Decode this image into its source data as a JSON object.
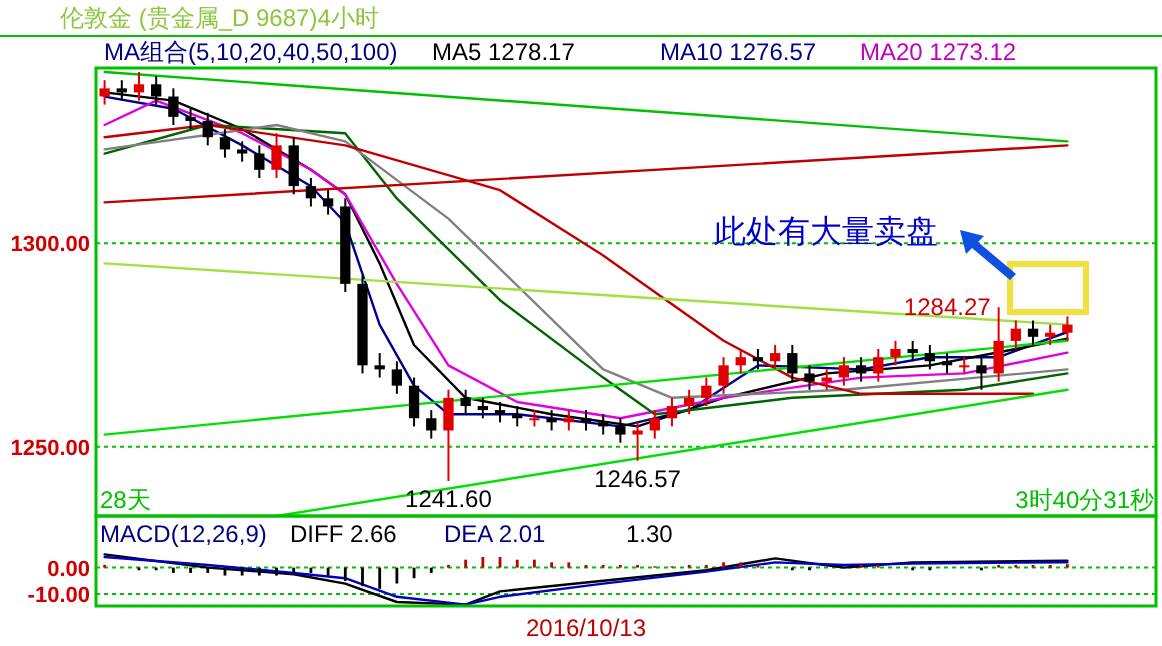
{
  "chart_data": [
    {
      "type": "candlestick",
      "title": "伦敦金 (贵金属_D 9687)4小时",
      "annotations": [
        "MA组合(5,10,20,40,50,100)",
        "MA5 1278.17",
        "MA10 1276.57",
        "MA20 1273.12",
        "28天",
        "3时40分31秒",
        "此处有大量卖盘"
      ],
      "categories": [
        null,
        null,
        null,
        null,
        null,
        null,
        null,
        null,
        null,
        null,
        null,
        null,
        null,
        null,
        null,
        null,
        null,
        null,
        null,
        null,
        null,
        null,
        null,
        null,
        null,
        null,
        null,
        null,
        null,
        null,
        null,
        null,
        null,
        null,
        null,
        null,
        null,
        null,
        null,
        null,
        null,
        null,
        null,
        null,
        null,
        null,
        null,
        null,
        null,
        null,
        null,
        null,
        null,
        null,
        null,
        null,
        null
      ],
      "ohlc": [
        [
          1336,
          1340,
          1334,
          1338
        ],
        [
          1338,
          1340,
          1335,
          1337
        ],
        [
          1337,
          1342,
          1335,
          1339
        ],
        [
          1339,
          1341,
          1334,
          1336
        ],
        [
          1336,
          1338,
          1329,
          1331
        ],
        [
          1331,
          1333,
          1328,
          1330
        ],
        [
          1330,
          1332,
          1324,
          1326
        ],
        [
          1326,
          1328,
          1321,
          1323
        ],
        [
          1323,
          1325,
          1320,
          1322
        ],
        [
          1322,
          1324,
          1316,
          1318
        ],
        [
          1318,
          1327,
          1316,
          1324
        ],
        [
          1324,
          1326,
          1312,
          1314
        ],
        [
          1314,
          1316,
          1309,
          1311
        ],
        [
          1311,
          1313,
          1307,
          1309
        ],
        [
          1309,
          1311,
          1288,
          1290
        ],
        [
          1290,
          1292,
          1268,
          1270
        ],
        [
          1270,
          1273,
          1267,
          1269
        ],
        [
          1269,
          1271,
          1263,
          1265
        ],
        [
          1265,
          1267,
          1255,
          1257
        ],
        [
          1257,
          1259,
          1252,
          1254
        ],
        [
          1254,
          1264,
          1241.6,
          1262
        ],
        [
          1262,
          1264,
          1258,
          1260
        ],
        [
          1260,
          1262,
          1257,
          1259
        ],
        [
          1259,
          1261,
          1256,
          1258
        ],
        [
          1258,
          1260,
          1255,
          1257
        ],
        [
          1257,
          1259,
          1255,
          1257
        ],
        [
          1257,
          1259,
          1254,
          1256
        ],
        [
          1256,
          1259,
          1254,
          1257
        ],
        [
          1257,
          1259,
          1254,
          1256
        ],
        [
          1256,
          1258,
          1253,
          1255
        ],
        [
          1255,
          1257,
          1251,
          1253
        ],
        [
          1253,
          1256,
          1246.57,
          1254
        ],
        [
          1254,
          1259,
          1252,
          1257
        ],
        [
          1257,
          1262,
          1255,
          1260
        ],
        [
          1260,
          1264,
          1258,
          1262
        ],
        [
          1262,
          1267,
          1260,
          1265
        ],
        [
          1265,
          1272,
          1263,
          1270
        ],
        [
          1270,
          1274,
          1268,
          1272
        ],
        [
          1272,
          1274,
          1269,
          1271
        ],
        [
          1271,
          1275,
          1269,
          1273
        ],
        [
          1273,
          1275,
          1266,
          1268
        ],
        [
          1268,
          1270,
          1264,
          1266
        ],
        [
          1266,
          1269,
          1264,
          1267
        ],
        [
          1267,
          1272,
          1265,
          1270
        ],
        [
          1270,
          1272,
          1266,
          1268
        ],
        [
          1268,
          1274,
          1266,
          1272
        ],
        [
          1272,
          1276,
          1270,
          1274
        ],
        [
          1274,
          1276,
          1271,
          1273
        ],
        [
          1273,
          1275,
          1269,
          1271
        ],
        [
          1271,
          1273,
          1268,
          1270
        ],
        [
          1270,
          1272,
          1268,
          1270
        ],
        [
          1270,
          1272,
          1264,
          1268
        ],
        [
          1268,
          1284.27,
          1266,
          1276
        ],
        [
          1276,
          1281,
          1274,
          1279
        ],
        [
          1279,
          1281,
          1275,
          1277
        ],
        [
          1277,
          1280,
          1275,
          1278
        ],
        [
          1278,
          1282,
          1276,
          1280
        ]
      ],
      "value_labels": [
        null,
        null,
        null,
        null,
        null,
        null,
        null,
        null,
        null,
        null,
        null,
        null,
        null,
        null,
        null,
        null,
        null,
        null,
        null,
        null,
        "1241.60",
        null,
        null,
        null,
        null,
        null,
        null,
        null,
        null,
        null,
        null,
        "1246.57",
        null,
        null,
        null,
        null,
        null,
        null,
        null,
        null,
        null,
        null,
        null,
        null,
        null,
        null,
        null,
        null,
        null,
        null,
        null,
        null,
        "1284.27",
        null,
        null,
        null,
        null
      ],
      "series": [
        {
          "type": "line",
          "color": "#00008b",
          "values": [
            1336,
            null,
            null,
            null,
            1333,
            null,
            null,
            null,
            1324,
            null,
            null,
            null,
            1314,
            null,
            1305,
            null,
            1280,
            null,
            1265,
            null,
            1258,
            null,
            null,
            null,
            1258,
            null,
            null,
            null,
            null,
            null,
            1255,
            null,
            null,
            null,
            1259,
            null,
            null,
            null,
            1270,
            null,
            null,
            null,
            null,
            null,
            1269,
            null,
            null,
            null,
            1272,
            null,
            null,
            null,
            1272,
            null,
            null,
            null,
            1278.17
          ]
        },
        {
          "type": "line",
          "color": "#000000",
          "values": [
            1337,
            null,
            null,
            null,
            1335,
            null,
            null,
            null,
            1328,
            null,
            null,
            null,
            1318,
            null,
            1312,
            null,
            1295,
            null,
            1275,
            null,
            null,
            1262,
            null,
            null,
            null,
            null,
            1258,
            null,
            null,
            null,
            null,
            1255,
            null,
            null,
            null,
            null,
            1262,
            null,
            null,
            null,
            null,
            null,
            1268,
            null,
            null,
            null,
            null,
            null,
            1270,
            null,
            null,
            null,
            null,
            1274,
            null,
            null,
            1276.57
          ]
        },
        {
          "type": "line",
          "color": "#e000e0",
          "values": [
            1329,
            null,
            null,
            1335,
            null,
            null,
            null,
            null,
            1327,
            null,
            null,
            null,
            1318,
            null,
            1312,
            null,
            null,
            1290,
            null,
            null,
            1270,
            null,
            null,
            null,
            1261,
            null,
            null,
            null,
            null,
            null,
            1257,
            null,
            null,
            null,
            null,
            null,
            1262,
            null,
            null,
            null,
            null,
            null,
            null,
            null,
            1267,
            null,
            null,
            null,
            null,
            null,
            1268,
            null,
            null,
            null,
            null,
            null,
            1273.12
          ]
        },
        {
          "type": "line",
          "color": "#006400",
          "values": [
            1322,
            null,
            null,
            null,
            null,
            null,
            1329,
            null,
            null,
            null,
            null,
            null,
            null,
            null,
            1327,
            null,
            null,
            1311,
            null,
            null,
            null,
            null,
            null,
            1286,
            null,
            null,
            null,
            null,
            null,
            1267,
            null,
            null,
            1258,
            null,
            null,
            null,
            null,
            null,
            null,
            null,
            1262,
            null,
            null,
            null,
            null,
            null,
            null,
            null,
            null,
            null,
            1264,
            null,
            null,
            null,
            null,
            null,
            1268
          ]
        },
        {
          "type": "line",
          "color": "#808080",
          "values": [
            1323,
            null,
            null,
            null,
            null,
            null,
            null,
            null,
            null,
            null,
            1329,
            null,
            null,
            null,
            1325,
            null,
            null,
            null,
            null,
            null,
            1306,
            null,
            null,
            null,
            null,
            null,
            null,
            null,
            null,
            1269,
            null,
            null,
            null,
            1262,
            null,
            null,
            null,
            null,
            null,
            null,
            null,
            null,
            null,
            1264,
            null,
            null,
            null,
            null,
            null,
            null,
            null,
            null,
            null,
            null,
            null,
            null,
            1269
          ]
        },
        {
          "type": "line",
          "color": "#c00000",
          "values": [
            1326,
            null,
            null,
            null,
            null,
            null,
            1329,
            null,
            null,
            null,
            null,
            null,
            null,
            null,
            1324,
            null,
            null,
            null,
            null,
            null,
            null,
            null,
            null,
            1313,
            null,
            null,
            null,
            null,
            null,
            1297,
            null,
            null,
            null,
            null,
            null,
            null,
            1276,
            null,
            null,
            null,
            1267,
            null,
            null,
            null,
            1263,
            null,
            null,
            null,
            null,
            null,
            1263,
            null,
            null,
            null,
            1263,
            null,
            null
          ]
        },
        {
          "type": "line",
          "color": "#00e000",
          "values": [
            1253,
            null,
            null,
            null,
            null,
            null,
            null,
            null,
            null,
            null,
            null,
            null,
            null,
            null,
            null,
            null,
            null,
            null,
            null,
            null,
            null,
            null,
            null,
            null,
            null,
            null,
            null,
            null,
            null,
            null,
            null,
            null,
            null,
            null,
            null,
            null,
            null,
            null,
            null,
            null,
            null,
            null,
            null,
            null,
            null,
            null,
            null,
            null,
            null,
            null,
            null,
            null,
            null,
            null,
            null,
            null,
            1276
          ]
        },
        {
          "type": "line",
          "color": "#00e000",
          "values": [
            null,
            null,
            null,
            null,
            null,
            null,
            null,
            null,
            null,
            null,
            1233,
            null,
            null,
            null,
            null,
            null,
            null,
            null,
            null,
            null,
            null,
            null,
            null,
            null,
            null,
            null,
            null,
            null,
            null,
            null,
            null,
            null,
            null,
            null,
            null,
            null,
            null,
            null,
            null,
            null,
            null,
            null,
            null,
            null,
            null,
            null,
            null,
            null,
            null,
            null,
            null,
            null,
            null,
            null,
            null,
            null,
            1264
          ]
        },
        {
          "type": "line",
          "color": "#00c000",
          "values": [
            1342,
            null,
            null,
            null,
            null,
            null,
            null,
            null,
            null,
            null,
            null,
            null,
            null,
            null,
            null,
            null,
            null,
            null,
            null,
            null,
            null,
            null,
            null,
            null,
            null,
            null,
            null,
            null,
            null,
            null,
            null,
            null,
            null,
            null,
            null,
            null,
            null,
            null,
            null,
            null,
            null,
            null,
            null,
            null,
            null,
            null,
            null,
            null,
            null,
            null,
            null,
            null,
            null,
            null,
            null,
            null,
            1325
          ]
        },
        {
          "type": "line",
          "color": "#c00000",
          "values": [
            1310,
            null,
            null,
            null,
            null,
            null,
            null,
            null,
            null,
            null,
            null,
            null,
            null,
            null,
            null,
            null,
            null,
            null,
            null,
            null,
            null,
            null,
            null,
            null,
            null,
            null,
            null,
            null,
            null,
            null,
            null,
            null,
            null,
            null,
            null,
            null,
            null,
            null,
            null,
            null,
            null,
            null,
            null,
            null,
            null,
            null,
            null,
            null,
            null,
            null,
            null,
            null,
            null,
            null,
            null,
            null,
            1324
          ]
        },
        {
          "type": "line",
          "color": "#a0e040",
          "values": [
            1295,
            null,
            null,
            null,
            null,
            null,
            null,
            null,
            null,
            null,
            null,
            null,
            null,
            null,
            null,
            null,
            null,
            null,
            null,
            null,
            null,
            null,
            null,
            null,
            null,
            null,
            null,
            null,
            null,
            null,
            null,
            null,
            null,
            null,
            null,
            null,
            null,
            null,
            null,
            null,
            null,
            null,
            null,
            null,
            null,
            null,
            null,
            null,
            null,
            null,
            null,
            null,
            null,
            null,
            null,
            null,
            1280
          ]
        }
      ],
      "ylim": [
        1233,
        1343
      ],
      "yticks": [
        {
          "value": 1250,
          "label": "1250.00"
        },
        {
          "value": 1300,
          "label": "1300.00"
        }
      ],
      "grid": "y",
      "tick_labels": "y"
    },
    {
      "type": "line",
      "title": "MACD(12,26,9)",
      "annotations": [
        "DIFF 2.66",
        "DEA 2.01",
        "1.30",
        "2016/10/13"
      ],
      "categories": [
        null,
        null,
        null,
        null,
        null,
        null,
        null,
        null,
        null,
        null,
        null,
        null,
        null,
        null,
        null,
        null,
        null,
        null,
        null,
        null,
        null,
        null,
        null,
        null,
        null,
        null,
        null,
        null,
        null,
        null,
        null,
        null,
        null,
        null,
        null,
        null,
        null,
        null,
        null,
        null,
        null,
        null,
        null,
        null,
        null,
        null,
        null,
        null,
        null,
        null,
        null,
        null,
        null,
        null,
        null,
        null,
        null
      ],
      "series": [
        {
          "type": "bar",
          "colors": [
            "#c00000",
            "#c00000",
            "#000000",
            "#000000",
            "#000000",
            "#000000",
            "#000000",
            "#000000",
            "#000000",
            "#000000",
            "#000000",
            "#000000",
            "#000000",
            "#000000",
            "#000000",
            "#000000",
            "#000000",
            "#000000",
            "#000000",
            "#000000",
            "#c00000",
            "#c00000",
            "#c00000",
            "#c00000",
            "#c00000",
            "#c00000",
            "#c00000",
            "#c00000",
            "#c00000",
            "#c00000",
            "#c00000",
            "#c00000",
            "#c00000",
            "#c00000",
            "#c00000",
            "#c00000",
            "#c00000",
            "#c00000",
            "#c00000",
            "#c00000",
            "#000000",
            "#000000",
            "#c00000",
            "#c00000",
            "#c00000",
            "#c00000",
            "#c00000",
            "#000000",
            "#000000",
            "#c00000",
            "#c00000",
            "#000000",
            "#c00000",
            "#c00000",
            "#c00000",
            "#c00000",
            "#c00000"
          ],
          "values": [
            1,
            0,
            -1,
            -1,
            -2,
            -2,
            -2,
            -3,
            -3,
            -3,
            -3,
            -2,
            -2,
            -3,
            -5,
            -7,
            -8,
            -6,
            -4,
            -2,
            1,
            3,
            4,
            4,
            3,
            3,
            2,
            2,
            1,
            1,
            1,
            1,
            0.5,
            0.5,
            1,
            1,
            2,
            2,
            1,
            0,
            -1,
            -1,
            0,
            0,
            1,
            1,
            0,
            -1,
            -1,
            0,
            0,
            -1,
            1,
            1,
            1,
            1,
            1.3
          ]
        },
        {
          "type": "line",
          "color": "#000000",
          "values": [
            5,
            null,
            null,
            null,
            null,
            null,
            0,
            null,
            null,
            null,
            null,
            -2.5,
            null,
            null,
            -6,
            null,
            null,
            -13,
            null,
            null,
            null,
            -14,
            null,
            -9,
            null,
            null,
            null,
            null,
            null,
            -5,
            null,
            null,
            null,
            null,
            null,
            -1,
            null,
            null,
            null,
            3.5,
            null,
            null,
            null,
            0,
            null,
            null,
            null,
            2,
            null,
            null,
            null,
            null,
            null,
            null,
            null,
            null,
            2.66
          ]
        },
        {
          "type": "line",
          "color": "#0000c0",
          "values": [
            4,
            null,
            null,
            null,
            null,
            null,
            1,
            null,
            null,
            null,
            null,
            -2,
            null,
            null,
            -4,
            null,
            null,
            -11,
            null,
            null,
            null,
            -14,
            null,
            -11,
            null,
            null,
            null,
            null,
            null,
            -6,
            null,
            null,
            null,
            null,
            null,
            -1.5,
            null,
            null,
            null,
            2,
            null,
            null,
            null,
            1,
            null,
            null,
            null,
            1.5,
            null,
            null,
            null,
            null,
            null,
            null,
            null,
            null,
            2.01
          ]
        }
      ],
      "ylim": [
        -14.5,
        19.5
      ],
      "yticks": [
        {
          "value": -10,
          "label": "-10.00"
        },
        {
          "value": 0,
          "label": "0.00"
        }
      ],
      "grid": "y"
    }
  ]
}
